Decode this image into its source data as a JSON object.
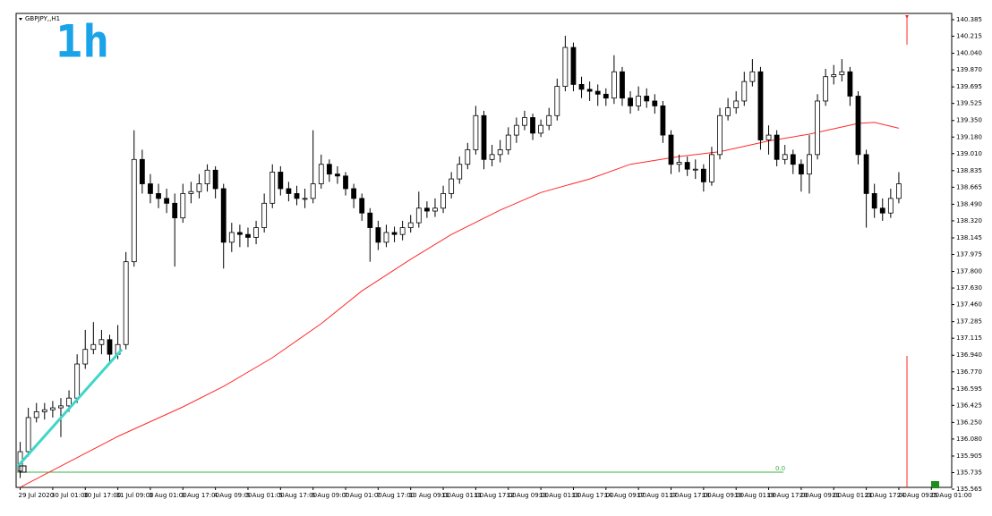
{
  "chart_data": {
    "type": "candlestick",
    "title": "GBPJPY,,H1",
    "annotation": "1h",
    "xlim": [
      -0.5,
      114.5
    ],
    "xticks": [
      {
        "value": 0,
        "label": "29 Jul 2020"
      },
      {
        "value": 4,
        "label": "30 Jul 01:00"
      },
      {
        "value": 8,
        "label": "30 Jul 17:00"
      },
      {
        "value": 12,
        "label": "31 Jul 09:00"
      },
      {
        "value": 16,
        "label": "3 Aug 01:00"
      },
      {
        "value": 20,
        "label": "3 Aug 17:00"
      },
      {
        "value": 24,
        "label": "4 Aug 09:00"
      },
      {
        "value": 28,
        "label": "5 Aug 01:00"
      },
      {
        "value": 32,
        "label": "5 Aug 17:00"
      },
      {
        "value": 36,
        "label": "6 Aug 09:00"
      },
      {
        "value": 40,
        "label": "7 Aug 01:00"
      },
      {
        "value": 44,
        "label": "7 Aug 17:00"
      },
      {
        "value": 48,
        "label": "10 Aug 09:00"
      },
      {
        "value": 52,
        "label": "11 Aug 01:00"
      },
      {
        "value": 56,
        "label": "11 Aug 17:00"
      },
      {
        "value": 60,
        "label": "12 Aug 09:00"
      },
      {
        "value": 64,
        "label": "13 Aug 01:00"
      },
      {
        "value": 68,
        "label": "13 Aug 17:00"
      },
      {
        "value": 72,
        "label": "14 Aug 09:00"
      },
      {
        "value": 76,
        "label": "17 Aug 01:00"
      },
      {
        "value": 80,
        "label": "17 Aug 17:00"
      },
      {
        "value": 84,
        "label": "18 Aug 09:00"
      },
      {
        "value": 88,
        "label": "19 Aug 01:00"
      },
      {
        "value": 92,
        "label": "19 Aug 17:00"
      },
      {
        "value": 96,
        "label": "20 Aug 09:00"
      },
      {
        "value": 100,
        "label": "21 Aug 01:00"
      },
      {
        "value": 104,
        "label": "21 Aug 17:00"
      },
      {
        "value": 108,
        "label": "24 Aug 09:00"
      },
      {
        "value": 112,
        "label": "25 Aug 01:00"
      }
    ],
    "ylim": [
      135.565,
      140.385
    ],
    "yticks": [
      140.385,
      140.215,
      {
        "value": 140.04,
        "label": "140.040"
      },
      {
        "value": 139.87,
        "label": "139.870"
      },
      139.695,
      139.525,
      {
        "value": 139.35,
        "label": "139.350"
      },
      {
        "value": 139.18,
        "label": "139.180"
      },
      {
        "value": 139.01,
        "label": "139.010"
      },
      138.835,
      138.665,
      {
        "value": 138.49,
        "label": "138.490"
      },
      {
        "value": 138.32,
        "label": "138.320"
      },
      138.145,
      137.975,
      {
        "value": 137.8,
        "label": "137.800"
      },
      {
        "value": 137.63,
        "label": "137.630"
      },
      {
        "value": 137.46,
        "label": "137.460"
      },
      137.285,
      137.115,
      {
        "value": 136.94,
        "label": "136.940"
      },
      {
        "value": 136.77,
        "label": "136.770"
      },
      136.595,
      136.425,
      {
        "value": 136.25,
        "label": "136.250"
      },
      {
        "value": 136.08,
        "label": "136.080"
      },
      135.905,
      135.735,
      135.565
    ],
    "x": [
      0,
      1,
      2,
      3,
      4,
      5,
      6,
      7,
      8,
      9,
      10,
      11,
      12,
      13,
      14,
      15,
      16,
      17,
      18,
      19,
      20,
      21,
      22,
      23,
      24,
      25,
      26,
      27,
      28,
      29,
      30,
      31,
      32,
      33,
      34,
      35,
      36,
      37,
      38,
      39,
      40,
      41,
      42,
      43,
      44,
      45,
      46,
      47,
      48,
      49,
      50,
      51,
      52,
      53,
      54,
      55,
      56,
      57,
      58,
      59,
      60,
      61,
      62,
      63,
      64,
      65,
      66,
      67,
      68,
      69,
      70,
      71,
      72,
      73,
      74,
      75,
      76,
      77,
      78,
      79,
      80,
      81,
      82,
      83,
      84,
      85,
      86,
      87,
      88,
      89,
      90,
      91,
      92,
      93,
      94,
      95,
      96,
      97,
      98,
      99,
      100,
      101,
      102,
      103,
      104,
      105,
      106,
      107,
      108
    ],
    "ohlc": [
      [
        135.75,
        136.05,
        135.68,
        135.95
      ],
      [
        135.95,
        136.4,
        135.9,
        136.3
      ],
      [
        136.3,
        136.45,
        136.25,
        136.36
      ],
      [
        136.36,
        136.45,
        136.28,
        136.38
      ],
      [
        136.38,
        136.47,
        136.3,
        136.4
      ],
      [
        136.4,
        136.5,
        136.1,
        136.42
      ],
      [
        136.42,
        136.58,
        136.36,
        136.5
      ],
      [
        136.5,
        136.95,
        136.45,
        136.85
      ],
      [
        136.85,
        137.2,
        136.8,
        137
      ],
      [
        137,
        137.28,
        136.95,
        137.05
      ],
      [
        137.05,
        137.2,
        136.95,
        137.1
      ],
      [
        137.1,
        137.15,
        136.85,
        136.95
      ],
      [
        136.95,
        137.25,
        136.9,
        137.05
      ],
      [
        137.05,
        138,
        137,
        137.9
      ],
      [
        137.9,
        139.25,
        137.85,
        138.95
      ],
      [
        138.95,
        139.05,
        138.6,
        138.7
      ],
      [
        138.7,
        138.8,
        138.5,
        138.6
      ],
      [
        138.6,
        138.7,
        138.45,
        138.55
      ],
      [
        138.55,
        138.65,
        138.4,
        138.5
      ],
      [
        138.5,
        138.6,
        137.85,
        138.35
      ],
      [
        138.35,
        138.7,
        138.3,
        138.6
      ],
      [
        138.6,
        138.72,
        138.5,
        138.62
      ],
      [
        138.62,
        138.8,
        138.55,
        138.7
      ],
      [
        138.7,
        138.9,
        138.62,
        138.84
      ],
      [
        138.84,
        138.88,
        138.55,
        138.65
      ],
      [
        138.65,
        138.7,
        137.83,
        138.1
      ],
      [
        138.1,
        138.3,
        138,
        138.2
      ],
      [
        138.2,
        138.28,
        138.05,
        138.18
      ],
      [
        138.18,
        138.25,
        138.05,
        138.15
      ],
      [
        138.15,
        138.32,
        138.08,
        138.25
      ],
      [
        138.25,
        138.6,
        138.2,
        138.5
      ],
      [
        138.5,
        138.9,
        138.45,
        138.82
      ],
      [
        138.82,
        138.88,
        138.58,
        138.65
      ],
      [
        138.65,
        138.72,
        138.52,
        138.6
      ],
      [
        138.6,
        138.68,
        138.48,
        138.55
      ],
      [
        138.55,
        138.65,
        138.45,
        138.55
      ],
      [
        138.55,
        139.25,
        138.5,
        138.7
      ],
      [
        138.7,
        139,
        138.65,
        138.9
      ],
      [
        138.9,
        138.95,
        138.72,
        138.8
      ],
      [
        138.8,
        138.88,
        138.7,
        138.78
      ],
      [
        138.78,
        138.82,
        138.58,
        138.65
      ],
      [
        138.65,
        138.7,
        138.45,
        138.55
      ],
      [
        138.55,
        138.6,
        138.32,
        138.4
      ],
      [
        138.4,
        138.45,
        137.9,
        138.25
      ],
      [
        138.25,
        138.32,
        138.02,
        138.1
      ],
      [
        138.1,
        138.28,
        138.05,
        138.2
      ],
      [
        138.2,
        138.26,
        138.1,
        138.18
      ],
      [
        138.18,
        138.32,
        138.12,
        138.25
      ],
      [
        138.25,
        138.38,
        138.2,
        138.3
      ],
      [
        138.3,
        138.62,
        138.25,
        138.45
      ],
      [
        138.45,
        138.52,
        138.35,
        138.42
      ],
      [
        138.42,
        138.55,
        138.36,
        138.45
      ],
      [
        138.45,
        138.68,
        138.4,
        138.6
      ],
      [
        138.6,
        138.82,
        138.55,
        138.75
      ],
      [
        138.75,
        138.98,
        138.7,
        138.9
      ],
      [
        138.9,
        139.12,
        138.85,
        139.05
      ],
      [
        139.05,
        139.5,
        139,
        139.4
      ],
      [
        139.4,
        139.45,
        138.85,
        138.95
      ],
      [
        138.95,
        139.1,
        138.88,
        139
      ],
      [
        139,
        139.15,
        138.92,
        139.05
      ],
      [
        139.05,
        139.28,
        139,
        139.2
      ],
      [
        139.2,
        139.38,
        139.12,
        139.3
      ],
      [
        139.3,
        139.45,
        139.25,
        139.38
      ],
      [
        139.38,
        139.42,
        139.15,
        139.22
      ],
      [
        139.22,
        139.36,
        139.18,
        139.3
      ],
      [
        139.3,
        139.48,
        139.25,
        139.4
      ],
      [
        139.4,
        139.78,
        139.35,
        139.7
      ],
      [
        139.7,
        140.22,
        139.65,
        140.1
      ],
      [
        140.1,
        140.15,
        139.65,
        139.72
      ],
      [
        139.72,
        139.8,
        139.58,
        139.67
      ],
      [
        139.67,
        139.75,
        139.55,
        139.65
      ],
      [
        139.65,
        139.72,
        139.5,
        139.62
      ],
      [
        139.62,
        139.68,
        139.5,
        139.58
      ],
      [
        139.58,
        140.02,
        139.52,
        139.85
      ],
      [
        139.85,
        139.9,
        139.5,
        139.58
      ],
      [
        139.58,
        139.65,
        139.42,
        139.5
      ],
      [
        139.5,
        139.7,
        139.45,
        139.6
      ],
      [
        139.6,
        139.68,
        139.48,
        139.55
      ],
      [
        139.55,
        139.62,
        139.42,
        139.5
      ],
      [
        139.5,
        139.55,
        139.12,
        139.2
      ],
      [
        139.2,
        139.25,
        138.8,
        138.9
      ],
      [
        138.9,
        139,
        138.82,
        138.92
      ],
      [
        138.92,
        138.98,
        138.78,
        138.85
      ],
      [
        138.85,
        138.95,
        138.75,
        138.85
      ],
      [
        138.85,
        138.9,
        138.62,
        138.72
      ],
      [
        138.72,
        139.08,
        138.68,
        139
      ],
      [
        139,
        139.48,
        138.95,
        139.4
      ],
      [
        139.4,
        139.58,
        139.35,
        139.48
      ],
      [
        139.48,
        139.65,
        139.42,
        139.55
      ],
      [
        139.55,
        139.85,
        139.5,
        139.75
      ],
      [
        139.75,
        139.98,
        139.7,
        139.85
      ],
      [
        139.85,
        139.9,
        139.05,
        139.15
      ],
      [
        139.15,
        139.3,
        139,
        139.2
      ],
      [
        139.2,
        139.25,
        138.88,
        138.95
      ],
      [
        138.95,
        139.1,
        138.9,
        139
      ],
      [
        139,
        139.05,
        138.8,
        138.9
      ],
      [
        138.9,
        138.95,
        138.62,
        138.8
      ],
      [
        138.8,
        139.2,
        138.6,
        139
      ],
      [
        139,
        139.62,
        138.95,
        139.55
      ],
      [
        139.55,
        139.88,
        139.5,
        139.8
      ],
      [
        139.8,
        139.92,
        139.72,
        139.82
      ],
      [
        139.82,
        139.98,
        139.75,
        139.85
      ],
      [
        139.85,
        139.9,
        139.5,
        139.6
      ],
      [
        139.6,
        139.65,
        138.9,
        139
      ],
      [
        139,
        139.05,
        138.25,
        138.6
      ],
      [
        138.6,
        138.7,
        138.35,
        138.45
      ],
      [
        138.45,
        138.55,
        138.32,
        138.4
      ],
      [
        138.4,
        138.65,
        138.35,
        138.55
      ],
      [
        138.55,
        138.82,
        138.5,
        138.7
      ]
    ],
    "up_color": "#ffffff",
    "down_color": "#000000",
    "series": [
      {
        "color": "#ff2a2a",
        "x": [
          0,
          12,
          20,
          25,
          31,
          37,
          42,
          48,
          53,
          59,
          64,
          70,
          75,
          81,
          86,
          92,
          97,
          103,
          105,
          108
        ],
        "values": [
          135.584,
          136.107,
          136.41,
          136.62,
          136.915,
          137.264,
          137.6,
          137.925,
          138.18,
          138.43,
          138.61,
          138.75,
          138.9,
          138.98,
          139.03,
          139.14,
          139.21,
          139.32,
          139.33,
          139.27
        ]
      }
    ],
    "trendline": {
      "color": "#3fd6c8",
      "x": [
        -0.3,
        12.5
      ],
      "values": [
        135.8,
        137.0
      ]
    },
    "hline": {
      "color": "#3cb043",
      "value": 135.74,
      "label": "0.0"
    },
    "vline": {
      "color": "#ff2a2a",
      "x": 109
    }
  }
}
